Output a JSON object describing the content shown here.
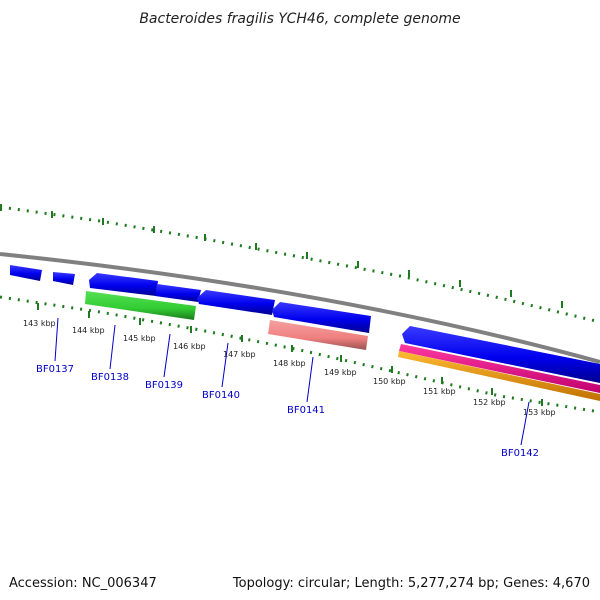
{
  "title": "Bacteroides fragilis YCH46, complete genome",
  "footer": {
    "accession": "Accession: NC_006347",
    "summary": "Topology: circular; Length: 5,277,274 bp; Genes: 4,670"
  },
  "colors": {
    "backbone": "#808080",
    "tick": "#1e7a1e",
    "gene_label": "#0000c8",
    "forward_cds": "#0000ff",
    "green_feature": "#33cc33",
    "salmon_feature": "#f08080",
    "magenta_feature": "#ff1493",
    "orange_feature": "#ffa500"
  },
  "scale_labels": [
    "143 kbp",
    "144 kbp",
    "145 kbp",
    "146 kbp",
    "147 kbp",
    "148 kbp",
    "149 kbp",
    "150 kbp",
    "151 kbp",
    "152 kbp",
    "153 kbp"
  ],
  "gene_labels": [
    "BF0137",
    "BF0138",
    "BF0139",
    "BF0140",
    "BF0141",
    "BF0142"
  ]
}
